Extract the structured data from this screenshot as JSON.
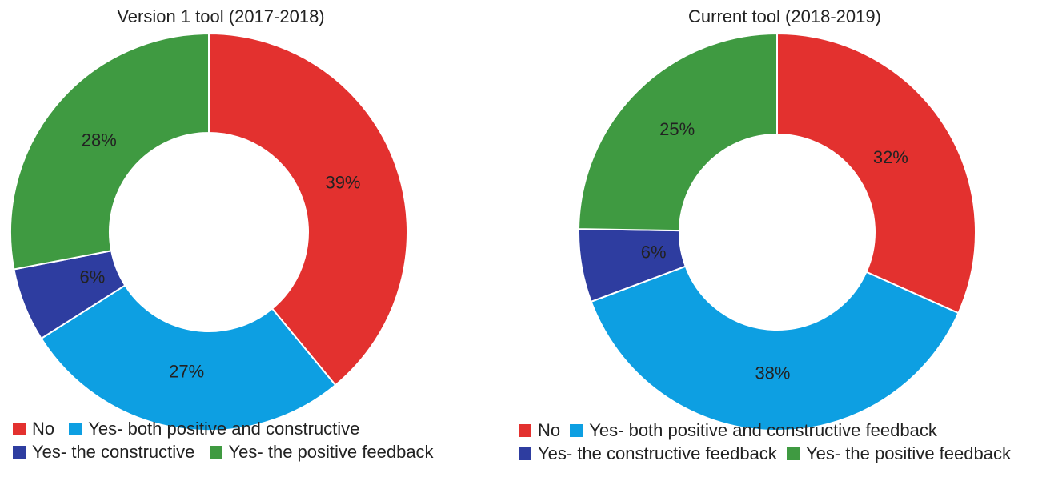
{
  "chart_data": [
    {
      "type": "pie",
      "title": "Version 1 tool (2017-2018)",
      "categories": [
        "No",
        "Yes- both positive and constructive",
        "Yes- the constructive",
        "Yes- the positive feedback"
      ],
      "values": [
        39,
        27,
        6,
        28
      ],
      "value_labels": [
        "39%",
        "27%",
        "6%",
        "28%"
      ],
      "colors": [
        "#e3312f",
        "#0d9fe2",
        "#2e3da0",
        "#3f9a41"
      ],
      "donut": true,
      "legend": {
        "placement": "bottom",
        "rows": [
          [
            "No",
            "Yes- both positive and constructive"
          ],
          [
            "Yes- the constructive",
            "Yes- the positive feedback"
          ]
        ]
      }
    },
    {
      "type": "pie",
      "title": "Current tool (2018-2019)",
      "categories": [
        "No",
        "Yes- both positive and constructive feedback",
        "Yes- the constructive feedback",
        "Yes- the positive feedback"
      ],
      "values": [
        32,
        38,
        6,
        25
      ],
      "value_labels": [
        "32%",
        "38%",
        "6%",
        "25%"
      ],
      "colors": [
        "#e3312f",
        "#0d9fe2",
        "#2e3da0",
        "#3f9a41"
      ],
      "donut": true,
      "legend": {
        "placement": "bottom",
        "rows": [
          [
            "No",
            "Yes- both positive and constructive feedback"
          ],
          [
            "Yes- the constructive feedback",
            "Yes- the positive feedback"
          ]
        ]
      }
    }
  ]
}
